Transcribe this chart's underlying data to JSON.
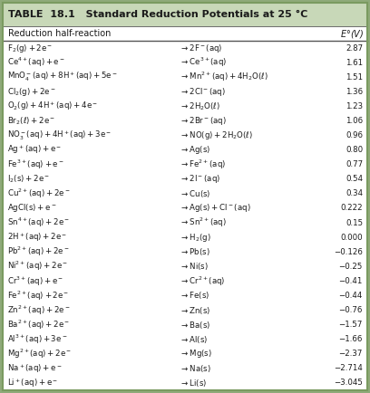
{
  "title_label": "TABLE  18.1",
  "title_main": "   Standard Reduction Potentials at 25 °C",
  "header_col1": "Reduction half-reaction",
  "header_col3": "$E$°(V)",
  "rows": [
    [
      "$\\mathrm{F_2(g) + 2e^-}$",
      "$\\rightarrow \\mathrm{2F^-(aq)}$",
      "2.87"
    ],
    [
      "$\\mathrm{Ce^{4+}(aq) + e^-}$",
      "$\\rightarrow \\mathrm{Ce^{3+}(aq)}$",
      "1.61"
    ],
    [
      "$\\mathrm{MnO_4^-(aq) + 8H^+(aq) + 5e^-}$",
      "$\\rightarrow \\mathrm{Mn^{2+}(aq) + 4H_2O(}$$\\ell$$\\mathrm{)}$",
      "1.51"
    ],
    [
      "$\\mathrm{Cl_2(g) + 2e^-}$",
      "$\\rightarrow \\mathrm{2Cl^-(aq)}$",
      "1.36"
    ],
    [
      "$\\mathrm{O_2(g) + 4H^+(aq) + 4e^-}$",
      "$\\rightarrow \\mathrm{2H_2O(}$$\\ell$$\\mathrm{)}$",
      "1.23"
    ],
    [
      "$\\mathrm{Br_2(}$$\\ell$$\\mathrm{) + 2e^-}$",
      "$\\rightarrow \\mathrm{2Br^-(aq)}$",
      "1.06"
    ],
    [
      "$\\mathrm{NO_3^-(aq) + 4H^+(aq) + 3e^-}$",
      "$\\rightarrow \\mathrm{NO(g) + 2H_2O(}$$\\ell$$\\mathrm{)}$",
      "0.96"
    ],
    [
      "$\\mathrm{Ag^+(aq) + e^-}$",
      "$\\rightarrow \\mathrm{Ag(s)}$",
      "0.80"
    ],
    [
      "$\\mathrm{Fe^{3+}(aq) + e^-}$",
      "$\\rightarrow \\mathrm{Fe^{2+}(aq)}$",
      "0.77"
    ],
    [
      "$\\mathrm{I_2(s) + 2e^-}$",
      "$\\rightarrow \\mathrm{2I^-(aq)}$",
      "0.54"
    ],
    [
      "$\\mathrm{Cu^{2+}(aq) + 2e^-}$",
      "$\\rightarrow \\mathrm{Cu(s)}$",
      "0.34"
    ],
    [
      "$\\mathrm{AgCl(s) + e^-}$",
      "$\\rightarrow \\mathrm{Ag(s) + Cl^-(aq)}$",
      "0.222"
    ],
    [
      "$\\mathrm{Sn^{4+}(aq) + 2e^-}$",
      "$\\rightarrow \\mathrm{Sn^{2+}(aq)}$",
      "0.15"
    ],
    [
      "$\\mathrm{2H^+(aq) + 2e^-}$",
      "$\\rightarrow \\mathrm{H_2(g)}$",
      "0.000"
    ],
    [
      "$\\mathrm{Pb^{2+}(aq) + 2e^-}$",
      "$\\rightarrow \\mathrm{Pb(s)}$",
      "−0.126"
    ],
    [
      "$\\mathrm{Ni^{2+}(aq) + 2e^-}$",
      "$\\rightarrow \\mathrm{Ni(s)}$",
      "−0.25"
    ],
    [
      "$\\mathrm{Cr^{3+}(aq) + e^-}$",
      "$\\rightarrow \\mathrm{Cr^{2+}(aq)}$",
      "−0.41"
    ],
    [
      "$\\mathrm{Fe^{2+}(aq) + 2e^-}$",
      "$\\rightarrow \\mathrm{Fe(s)}$",
      "−0.44"
    ],
    [
      "$\\mathrm{Zn^{2+}(aq) + 2e^-}$",
      "$\\rightarrow \\mathrm{Zn(s)}$",
      "−0.76"
    ],
    [
      "$\\mathrm{Ba^{2+}(aq) + 2e^-}$",
      "$\\rightarrow \\mathrm{Ba(s)}$",
      "−1.57"
    ],
    [
      "$\\mathrm{Al^{3+}(aq) + 3e^-}$",
      "$\\rightarrow \\mathrm{Al(s)}$",
      "−1.66"
    ],
    [
      "$\\mathrm{Mg^{2+}(aq) + 2e^-}$",
      "$\\rightarrow \\mathrm{Mg(s)}$",
      "−2.37"
    ],
    [
      "$\\mathrm{Na^+(aq) + e^-}$",
      "$\\rightarrow \\mathrm{Na(s)}$",
      "−2.714"
    ],
    [
      "$\\mathrm{Li^+(aq) + e^-}$",
      "$\\rightarrow \\mathrm{Li(s)}$",
      "−3.045"
    ]
  ],
  "outer_bg": "#8faa7a",
  "title_bg": "#c8d8b8",
  "data_bg": "#ffffff",
  "line_color": "#555555",
  "border_color": "#7a9a60",
  "text_color": "#1a1a1a"
}
